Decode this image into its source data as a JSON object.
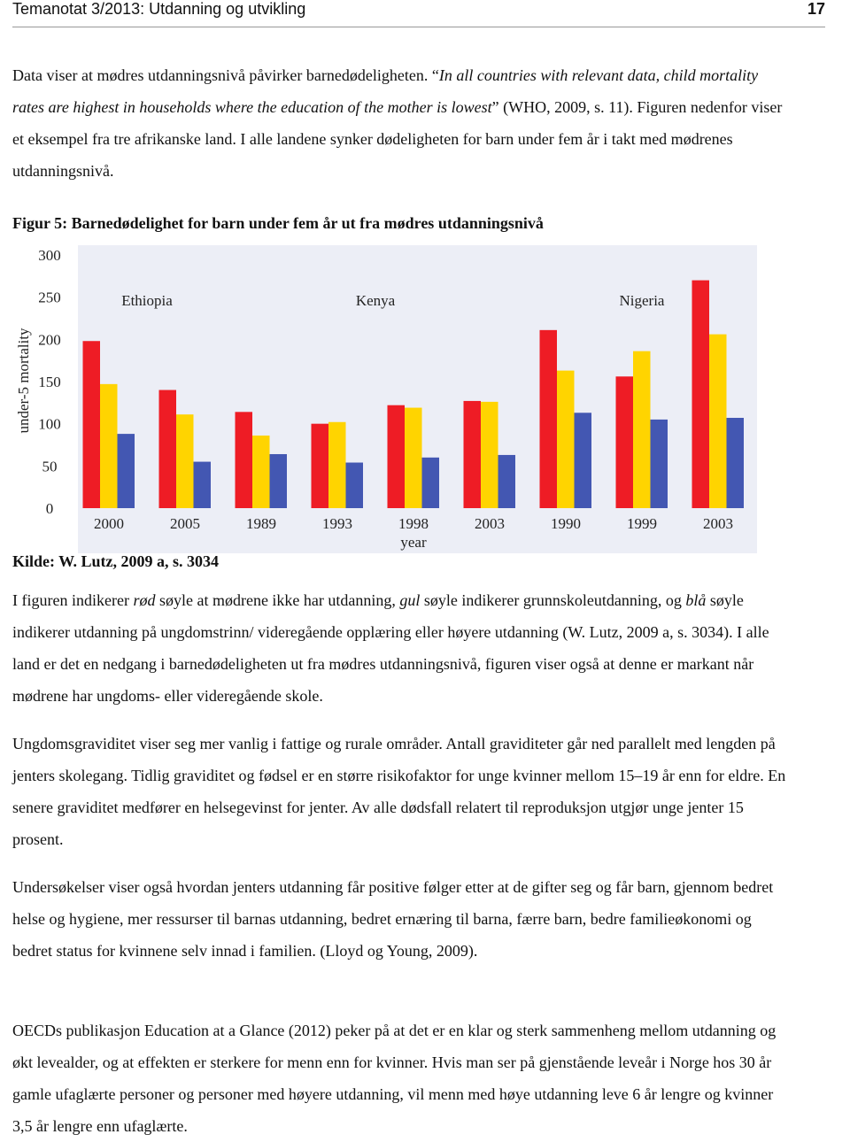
{
  "header": {
    "title": "Temanotat 3/2013: Utdanning og utvikling",
    "page": "17"
  },
  "paragraphs": [
    [
      {
        "text": "Data viser at mødres utdanningsnivå påvirker barnedødeligheten. “"
      },
      {
        "text": "In all countries with relevant data, child mortality rates are highest in households where the education of the mother is lowest",
        "italic": true
      },
      {
        "text": "” (WHO, 2009, s. 11). Figuren nedenfor viser et eksempel fra tre afrikanske land. I alle landene synker dødeligheten for barn under fem år i takt med mødrenes utdanningsnivå."
      }
    ],
    [
      {
        "text": "I figuren indikerer "
      },
      {
        "text": "rød",
        "italic": true
      },
      {
        "text": " søyle at mødrene ikke har utdanning, "
      },
      {
        "text": "gul",
        "italic": true
      },
      {
        "text": " søyle indikerer grunnskoleutdanning, og "
      },
      {
        "text": "blå",
        "italic": true
      },
      {
        "text": " søyle indikerer utdanning på ungdomstrinn/ videregående opplæring eller høyere utdanning (W. Lutz, 2009 a, s. 3034). I alle land er det en nedgang i barnedødeligheten ut fra mødres utdanningsnivå, figuren viser også at denne er markant når mødrene har ungdoms- eller videregående skole."
      }
    ],
    [
      {
        "text": "Ungdomsgraviditet viser seg mer vanlig i fattige og rurale områder. Antall graviditeter går ned parallelt med lengden på jenters skolegang. Tidlig graviditet og fødsel er en større risikofaktor for unge kvinner mellom 15–19 år enn for eldre. En senere graviditet medfører en helsegevinst for jenter. Av alle dødsfall relatert til reproduksjon utgjør unge jenter 15 prosent."
      }
    ],
    [
      {
        "text": "Undersøkelser viser også hvordan jenters utdanning får positive følger etter at de gifter seg og får barn, gjennom bedret helse og hygiene, mer ressurser til barnas utdanning, bedret ernæring til barna, færre barn, bedre familieøkonomi og bedret status for kvinnene selv innad i familien. (Lloyd og Young, 2009)."
      }
    ],
    [
      {
        "text": "OECDs publikasjon Education at a Glance (2012) peker på at det er en klar og sterk sammenheng mellom utdanning og økt levealder, og at effekten er sterkere for menn enn for kvinner. Hvis man ser på gjenstående leveår i Norge hos 30 år gamle ufaglærte personer og personer med høyere utdanning, vil menn med høye utdanning leve 6 år lengre og kvinner 3,5 år lengre enn ufaglærte."
      }
    ]
  ],
  "figure": {
    "caption": "Figur 5: Barnedødelighet for barn under fem år ut fra mødres utdanningsnivå",
    "source": "Kilde: W. Lutz, 2009 a, s. 3034"
  },
  "chart_data": {
    "type": "bar",
    "y_label": "under-5 mortality",
    "x_label": "year",
    "annotations": [
      "Ethiopia",
      "Kenya",
      "Nigeria"
    ],
    "categories": [
      "2000",
      "2005",
      "1989",
      "1993",
      "1998",
      "2003",
      "1990",
      "1999",
      "2003"
    ],
    "series": [
      {
        "color": "#ee1c25",
        "values": [
          198,
          140,
          114,
          100,
          122,
          127,
          211,
          156,
          270
        ]
      },
      {
        "color": "#ffd400",
        "values": [
          147,
          111,
          86,
          102,
          119,
          126,
          163,
          186,
          206
        ]
      },
      {
        "color": "#4357b2",
        "values": [
          88,
          55,
          64,
          54,
          60,
          63,
          113,
          105,
          107
        ]
      }
    ],
    "ylim": [
      0,
      300
    ],
    "yticks": [
      0,
      50,
      100,
      150,
      200,
      250,
      300
    ],
    "grid": false,
    "background": "#eceef6"
  }
}
